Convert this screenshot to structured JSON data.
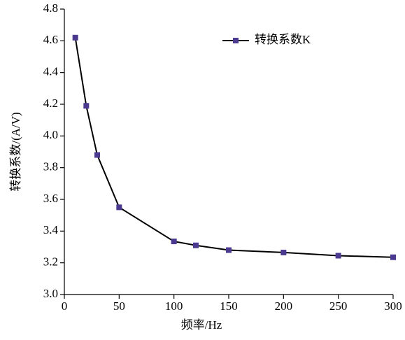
{
  "chart_data": {
    "type": "line",
    "x_label": "频率/Hz",
    "y_label": "转换系数/(A/V)",
    "x": [
      10,
      20,
      30,
      50,
      100,
      120,
      150,
      200,
      250,
      300
    ],
    "series": [
      {
        "name": "转换系数K",
        "color": "#4b3a8f",
        "line_color": "#000000",
        "values": [
          4.62,
          4.19,
          3.88,
          3.55,
          3.335,
          3.31,
          3.28,
          3.265,
          3.245,
          3.235
        ]
      }
    ],
    "xlim": [
      0,
      300
    ],
    "xticks": [
      0,
      50,
      100,
      150,
      200,
      250,
      300
    ],
    "ylim": [
      3.0,
      4.8
    ],
    "yticks": [
      {
        "value": 3.0,
        "label": "3.0"
      },
      3.2,
      3.4,
      3.6,
      3.8,
      {
        "value": 4.0,
        "label": "4.0"
      },
      4.2,
      4.4,
      4.6,
      4.8
    ],
    "grid": false,
    "legend": "upper right"
  }
}
